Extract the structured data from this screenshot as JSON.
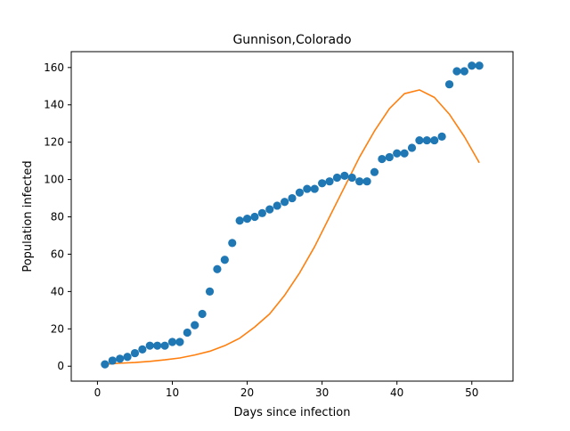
{
  "chart_data": {
    "type": "scatter",
    "title": "Gunnison,Colorado",
    "xlabel": "Days since infection",
    "ylabel": "Population infected",
    "xlim": [
      -3.5,
      55.5
    ],
    "ylim": [
      -8,
      168.5
    ],
    "xticks": [
      0,
      10,
      20,
      30,
      40,
      50
    ],
    "yticks": [
      0,
      20,
      40,
      60,
      80,
      100,
      120,
      140,
      160
    ],
    "grid": false,
    "legend": "none",
    "series": [
      {
        "type": "scatter",
        "color": "#1f77b4",
        "x": [
          1,
          2,
          3,
          4,
          5,
          6,
          7,
          8,
          9,
          10,
          11,
          12,
          13,
          14,
          15,
          16,
          17,
          18,
          19,
          20,
          21,
          22,
          23,
          24,
          25,
          26,
          27,
          28,
          29,
          30,
          31,
          32,
          33,
          34,
          35,
          36,
          37,
          38,
          39,
          40,
          41,
          42,
          43,
          44,
          45,
          46,
          47,
          48,
          49,
          50,
          51
        ],
        "y": [
          1,
          3,
          4,
          5,
          7,
          9,
          11,
          11,
          11,
          13,
          13,
          18,
          22,
          28,
          40,
          52,
          57,
          66,
          78,
          79,
          80,
          82,
          84,
          86,
          88,
          90,
          93,
          95,
          95,
          98,
          99,
          101,
          102,
          101,
          99,
          99,
          104,
          111,
          112,
          114,
          114,
          117,
          121,
          121,
          121,
          123,
          151,
          158,
          158,
          161,
          161
        ]
      },
      {
        "type": "line",
        "color": "#ff7f0e",
        "x": [
          1,
          3,
          5,
          7,
          9,
          11,
          13,
          15,
          17,
          19,
          21,
          23,
          25,
          27,
          29,
          31,
          33,
          35,
          37,
          39,
          41,
          43,
          45,
          47,
          49,
          51
        ],
        "y": [
          1,
          1.6,
          2,
          2.6,
          3.4,
          4.4,
          6,
          8,
          11,
          15,
          21,
          28,
          38,
          50,
          64,
          80,
          96,
          112,
          126,
          138,
          146,
          148,
          144,
          135,
          123,
          109
        ]
      }
    ]
  }
}
